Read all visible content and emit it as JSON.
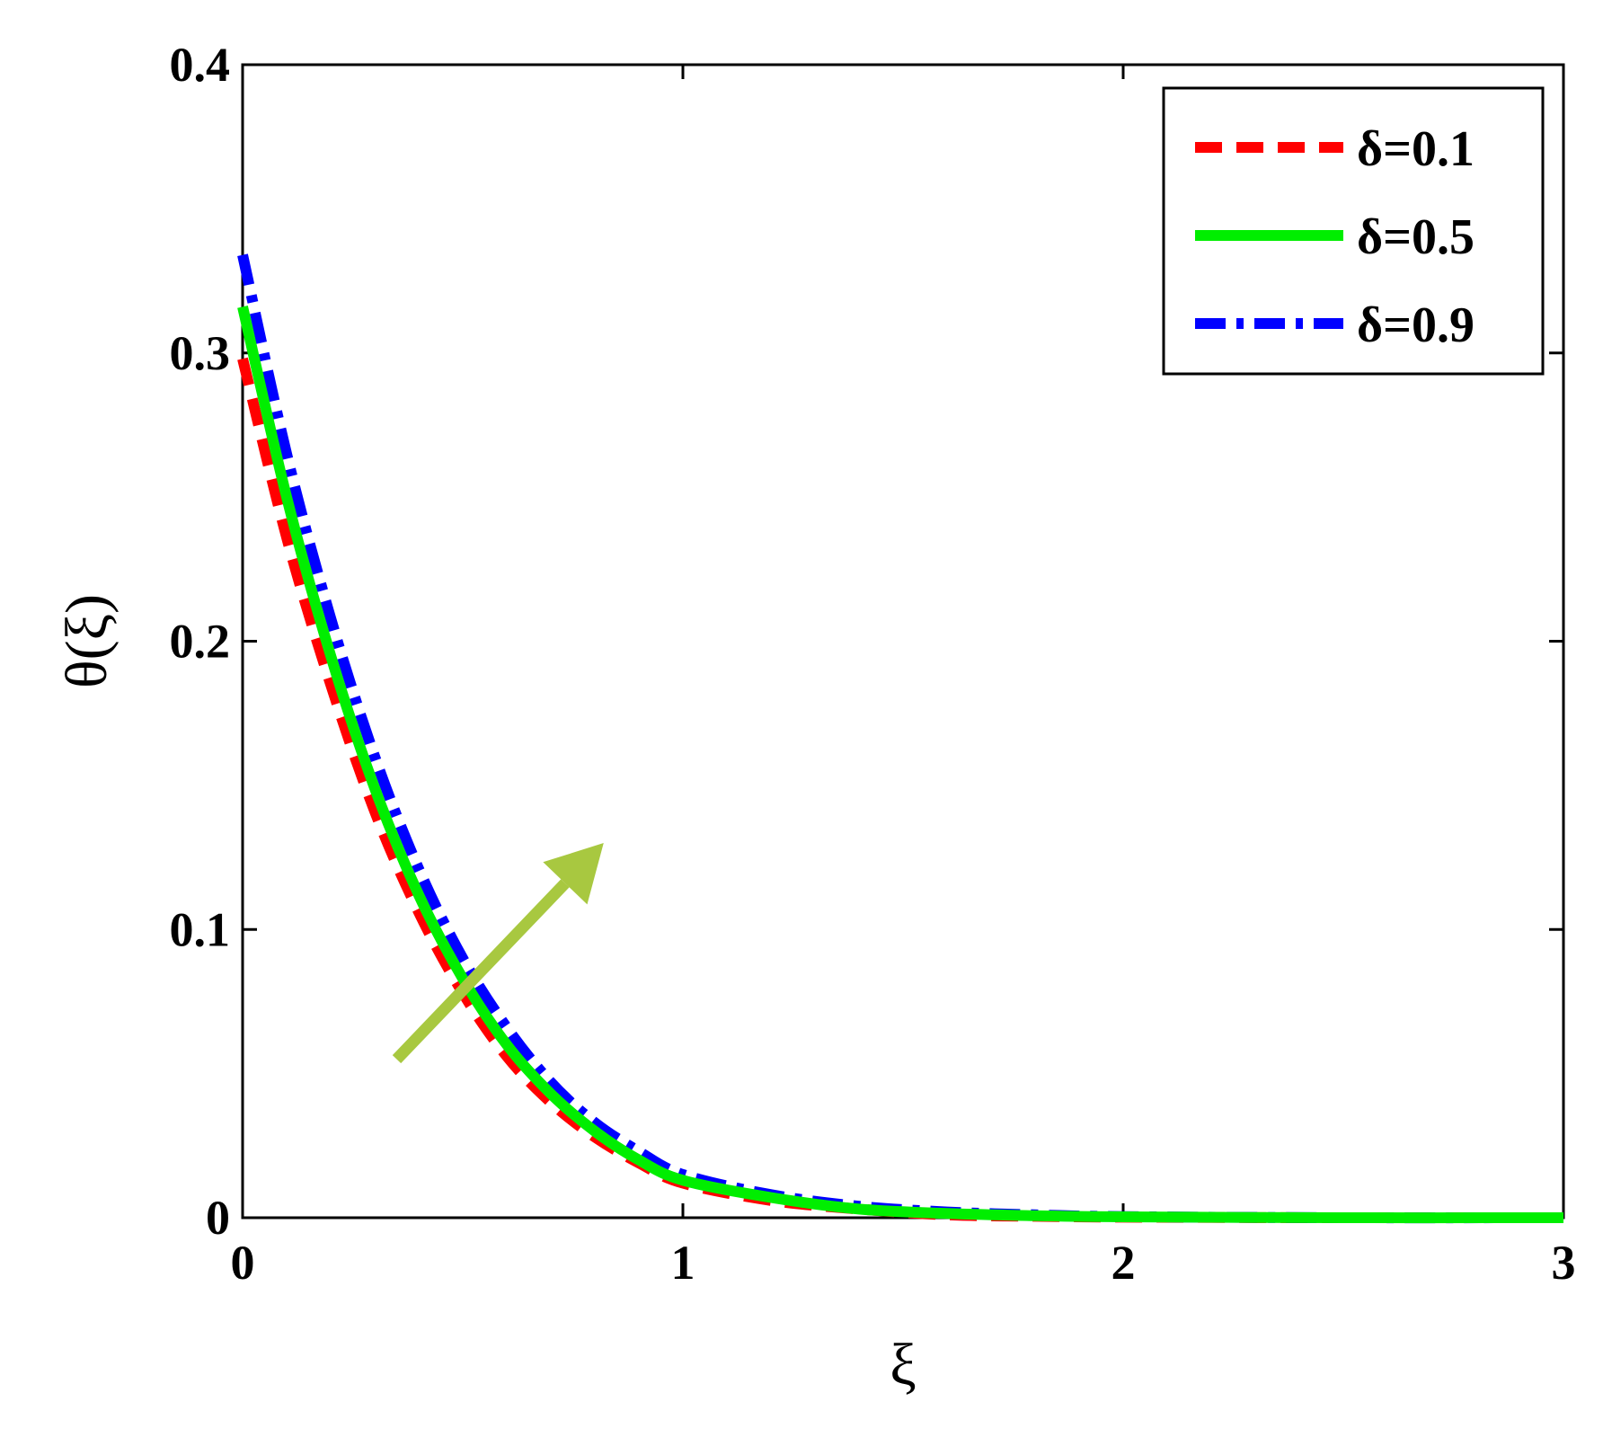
{
  "chart_data": {
    "type": "line",
    "title": "",
    "xlabel": "ξ",
    "ylabel": "θ(ξ)",
    "xlim": [
      0,
      3
    ],
    "ylim": [
      0,
      0.4
    ],
    "x_ticks": [
      0,
      1,
      2,
      3
    ],
    "x_tick_labels": [
      "0",
      "1",
      "2",
      "3"
    ],
    "y_ticks": [
      0,
      0.1,
      0.2,
      0.3,
      0.4
    ],
    "y_tick_labels": [
      "0",
      "0.1",
      "0.2",
      "0.3",
      "0.4"
    ],
    "grid": false,
    "legend_position": "top-right",
    "x": [
      0,
      0.1,
      0.2,
      0.3,
      0.4,
      0.5,
      0.6,
      0.7,
      0.8,
      0.9,
      1.0,
      1.2,
      1.4,
      1.6,
      1.8,
      2.0,
      2.5,
      3.0
    ],
    "series": [
      {
        "name": "δ=0.1",
        "color": "#ff0000",
        "style": "dashed",
        "values": [
          0.298,
          0.236,
          0.185,
          0.141,
          0.106,
          0.078,
          0.056,
          0.04,
          0.028,
          0.019,
          0.012,
          0.006,
          0.003,
          0.001,
          0.0005,
          0.0002,
          0.0,
          0.0
        ]
      },
      {
        "name": "δ=0.5",
        "color": "#00ee00",
        "style": "solid",
        "values": [
          0.316,
          0.25,
          0.195,
          0.149,
          0.112,
          0.083,
          0.06,
          0.043,
          0.03,
          0.02,
          0.013,
          0.007,
          0.003,
          0.0015,
          0.0007,
          0.0003,
          0.0,
          0.0
        ]
      },
      {
        "name": "δ=0.9",
        "color": "#0000ff",
        "style": "dashdot",
        "values": [
          0.334,
          0.265,
          0.208,
          0.16,
          0.121,
          0.09,
          0.066,
          0.047,
          0.033,
          0.023,
          0.015,
          0.008,
          0.004,
          0.002,
          0.001,
          0.0004,
          0.0,
          0.0
        ]
      }
    ],
    "annotation": {
      "type": "arrow",
      "color": "#a8c840",
      "from": [
        0.35,
        0.055
      ],
      "to": [
        0.82,
        0.13
      ]
    }
  }
}
